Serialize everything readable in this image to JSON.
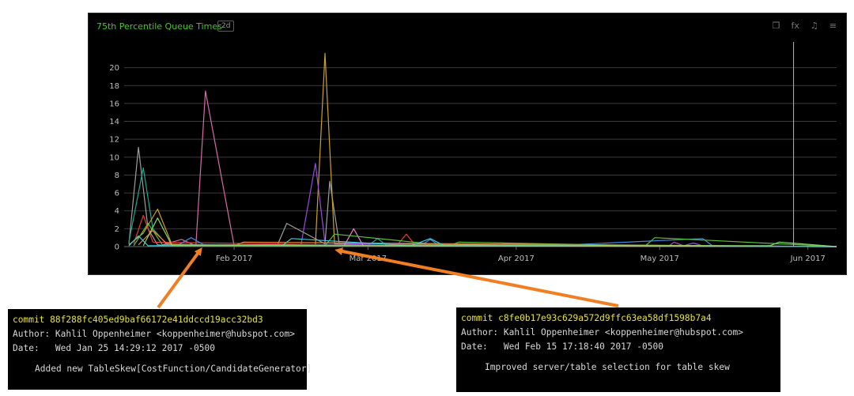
{
  "panel": {
    "title": "75th Percentile Queue Times",
    "range_badge": "2d",
    "icons": [
      "copy-icon",
      "fx-icon",
      "bell-icon",
      "menu-icon"
    ],
    "icon_glyphs": [
      "❐",
      "fx",
      "♫",
      "≡"
    ]
  },
  "chart_data": {
    "type": "line",
    "title": "75th Percentile Queue Times",
    "xlabel": "",
    "ylabel": "",
    "x_range": [
      "2017-01-09",
      "2017-06-07"
    ],
    "ylim": [
      0,
      22
    ],
    "y_ticks": [
      0,
      2,
      4,
      6,
      8,
      10,
      12,
      14,
      16,
      18,
      20
    ],
    "x_ticks": [
      {
        "date": "2017-02-01",
        "label": "Feb 2017"
      },
      {
        "date": "2017-03-01",
        "label": "Mar 2017"
      },
      {
        "date": "2017-04-01",
        "label": "Apr 2017"
      },
      {
        "date": "2017-05-01",
        "label": "May 2017"
      },
      {
        "date": "2017-06-01",
        "label": "Jun 2017"
      }
    ],
    "grid": true,
    "marker_line_date": "2017-05-29",
    "marker_line_color": "#b5b5b5",
    "series": [
      {
        "color": "#9e9e9e",
        "x": [
          "2017-01-10",
          "2017-01-12",
          "2017-01-14",
          "2017-01-16",
          "2017-01-18",
          "2017-02-10",
          "2017-02-12",
          "2017-02-20",
          "2017-02-21",
          "2017-02-23",
          "2017-06-07"
        ],
        "values": [
          0.3,
          11.1,
          2.0,
          0.2,
          0.1,
          0.1,
          2.6,
          0.3,
          7.3,
          0.3,
          0
        ]
      },
      {
        "color": "#1aa890",
        "x": [
          "2017-01-10",
          "2017-01-13",
          "2017-01-15",
          "2017-01-18",
          "2017-03-01",
          "2017-03-03",
          "2017-03-05",
          "2017-06-07"
        ],
        "values": [
          0.5,
          8.8,
          2.0,
          0.2,
          0.1,
          0.9,
          0.1,
          0
        ]
      },
      {
        "color": "#d76ba6",
        "x": [
          "2017-01-17",
          "2017-01-21",
          "2017-01-24",
          "2017-01-26",
          "2017-02-01",
          "2017-06-07"
        ],
        "values": [
          0.2,
          0.8,
          0.1,
          17.4,
          0.1,
          0
        ]
      },
      {
        "color": "#c9a227",
        "x": [
          "2017-01-10",
          "2017-01-13",
          "2017-01-16",
          "2017-01-19",
          "2017-02-18",
          "2017-02-20",
          "2017-02-22",
          "2017-03-01",
          "2017-06-07"
        ],
        "values": [
          0.2,
          1.5,
          4.2,
          0.2,
          0.2,
          21.6,
          0.3,
          0.1,
          0
        ]
      },
      {
        "color": "#9b4be0",
        "x": [
          "2017-02-15",
          "2017-02-18",
          "2017-02-20",
          "2017-03-20",
          "2017-05-03",
          "2017-05-04",
          "2017-05-06",
          "2017-05-08",
          "2017-05-10",
          "2017-06-07"
        ],
        "values": [
          0.2,
          9.3,
          0.4,
          0.1,
          0.1,
          0.5,
          0.1,
          0.4,
          0.1,
          0
        ]
      },
      {
        "color": "#e33d3d",
        "x": [
          "2017-01-11",
          "2017-01-13",
          "2017-01-15",
          "2017-03-07",
          "2017-03-09",
          "2017-03-11",
          "2017-06-07"
        ],
        "values": [
          0.3,
          3.5,
          0.5,
          0.1,
          1.4,
          0.1,
          0
        ]
      },
      {
        "color": "#3d8be0",
        "x": [
          "2017-01-20",
          "2017-01-23",
          "2017-01-26",
          "2017-03-12",
          "2017-03-14",
          "2017-03-16",
          "2017-04-12",
          "2017-05-10",
          "2017-05-12",
          "2017-06-07"
        ],
        "values": [
          0.1,
          1.0,
          0.1,
          0.1,
          0.8,
          0.1,
          0.2,
          0.9,
          0.1,
          0
        ]
      },
      {
        "color": "#e97fd7",
        "x": [
          "2017-02-24",
          "2017-02-26",
          "2017-02-28",
          "2017-06-07"
        ],
        "values": [
          0.1,
          2.0,
          0.1,
          0
        ]
      },
      {
        "color": "#5cbf3a",
        "x": [
          "2017-01-11",
          "2017-01-14",
          "2017-01-17",
          "2017-02-20",
          "2017-02-22",
          "2017-03-18",
          "2017-03-20",
          "2017-04-28",
          "2017-04-30",
          "2017-06-07"
        ],
        "values": [
          0.1,
          2.6,
          0.2,
          0.1,
          1.4,
          0.1,
          0.5,
          0.1,
          1.0,
          0
        ]
      },
      {
        "color": "#e0853d",
        "x": [
          "2017-01-12",
          "2017-01-15",
          "2017-01-18",
          "2017-02-01",
          "2017-02-03",
          "2017-06-07"
        ],
        "values": [
          0.2,
          1.8,
          0.3,
          0.1,
          0.5,
          0
        ]
      },
      {
        "color": "#3ec9d6",
        "x": [
          "2017-01-10",
          "2017-01-12",
          "2017-01-14",
          "2017-02-11",
          "2017-02-13",
          "2017-03-10",
          "2017-03-14",
          "2017-03-17",
          "2017-06-07"
        ],
        "values": [
          0.1,
          1.2,
          0.1,
          0.1,
          0.9,
          0.1,
          0.9,
          0.1,
          0
        ]
      },
      {
        "color": "#88d86b",
        "x": [
          "2017-01-13",
          "2017-01-16",
          "2017-01-19",
          "2017-05-24",
          "2017-05-26",
          "2017-06-07"
        ],
        "values": [
          0.1,
          3.2,
          0.1,
          0.1,
          0.5,
          0
        ]
      }
    ]
  },
  "commits": [
    {
      "commit_label": "commit",
      "hash": "88f288fc405ed9baf66172e41ddccd19acc32bd3",
      "author": "Author: Kahlil Oppenheimer <koppenheimer@hubspot.com>",
      "date": "Date:   Wed Jan 25 14:29:12 2017 -0500",
      "message": "Added new TableSkew[CostFunction/CandidateGenerator]",
      "arrow_date": "2017-01-25"
    },
    {
      "commit_label": "commit",
      "hash": "c8fe0b17e93c629a572d9ffc63ea58df1598b7a4",
      "author": "Author: Kahlil Oppenheimer <koppenheimer@hubspot.com>",
      "date": "Date:   Wed Feb 15 17:18:40 2017 -0500",
      "message": "Improved server/table selection for table skew",
      "arrow_date": "2017-02-23"
    }
  ],
  "arrow_color": "#f07f24"
}
